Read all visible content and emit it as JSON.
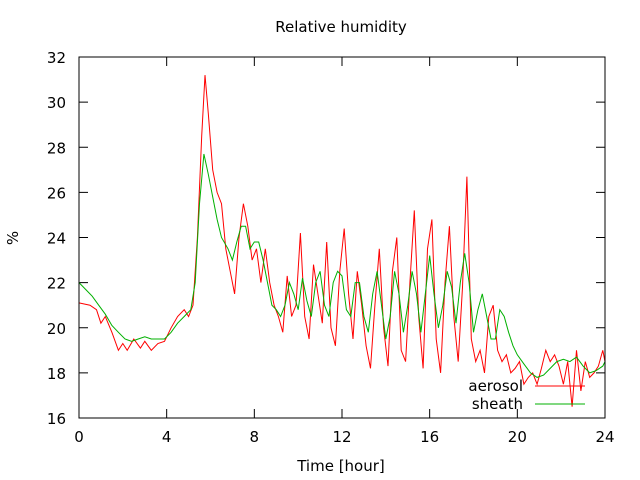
{
  "chart_data": {
    "type": "line",
    "title": "Relative humidity",
    "xlabel": "Time [hour]",
    "ylabel": "%",
    "xlim": [
      0,
      24
    ],
    "ylim": [
      16,
      32
    ],
    "xticks": [
      0,
      4,
      8,
      12,
      16,
      20,
      24
    ],
    "yticks": [
      16,
      18,
      20,
      22,
      24,
      26,
      28,
      30,
      32
    ],
    "grid": false,
    "legend": "bottom-right",
    "series": [
      {
        "name": "aerosol",
        "color": "#ff0000",
        "x": [
          0,
          0.5,
          0.8,
          1.0,
          1.2,
          1.5,
          1.8,
          2.0,
          2.2,
          2.5,
          2.8,
          3.0,
          3.3,
          3.6,
          3.9,
          4.2,
          4.5,
          4.8,
          5.0,
          5.2,
          5.4,
          5.6,
          5.75,
          5.9,
          6.1,
          6.3,
          6.5,
          6.7,
          6.9,
          7.1,
          7.3,
          7.5,
          7.7,
          7.9,
          8.1,
          8.3,
          8.5,
          8.7,
          8.9,
          9.1,
          9.3,
          9.5,
          9.7,
          9.9,
          10.1,
          10.3,
          10.5,
          10.7,
          10.9,
          11.1,
          11.3,
          11.5,
          11.7,
          11.9,
          12.1,
          12.3,
          12.5,
          12.7,
          12.9,
          13.1,
          13.3,
          13.5,
          13.7,
          13.9,
          14.1,
          14.3,
          14.5,
          14.7,
          14.9,
          15.1,
          15.3,
          15.5,
          15.7,
          15.9,
          16.1,
          16.3,
          16.5,
          16.7,
          16.9,
          17.1,
          17.3,
          17.5,
          17.7,
          17.9,
          18.1,
          18.3,
          18.5,
          18.7,
          18.9,
          19.1,
          19.3,
          19.5,
          19.7,
          19.9,
          20.1,
          20.3,
          20.5,
          20.7,
          20.9,
          21.1,
          21.3,
          21.5,
          21.7,
          21.9,
          22.1,
          22.3,
          22.5,
          22.7,
          22.9,
          23.1,
          23.3,
          23.5,
          23.7,
          23.9,
          24.0
        ],
        "y": [
          21.1,
          21.0,
          20.8,
          20.2,
          20.5,
          19.8,
          19.0,
          19.3,
          19.0,
          19.5,
          19.1,
          19.4,
          19.0,
          19.3,
          19.4,
          20.0,
          20.5,
          20.8,
          20.5,
          21.0,
          24.0,
          28.5,
          31.2,
          29.5,
          27.0,
          26.0,
          25.5,
          23.5,
          22.5,
          21.5,
          24.0,
          25.5,
          24.5,
          23.0,
          23.5,
          22.0,
          23.5,
          22.0,
          21.0,
          20.5,
          19.8,
          22.3,
          20.5,
          21.0,
          24.2,
          20.5,
          19.5,
          22.8,
          21.5,
          20.2,
          23.8,
          20.0,
          19.2,
          22.5,
          24.4,
          21.5,
          19.5,
          22.5,
          21.0,
          19.2,
          18.2,
          21.0,
          23.5,
          20.0,
          18.3,
          22.5,
          24.0,
          19.0,
          18.5,
          22.0,
          25.2,
          20.5,
          18.2,
          23.5,
          24.8,
          19.5,
          18.0,
          22.0,
          24.5,
          20.5,
          18.5,
          21.8,
          26.7,
          19.5,
          18.5,
          19.0,
          18.0,
          20.5,
          21.0,
          19.0,
          18.5,
          18.8,
          18.0,
          18.2,
          18.5,
          17.5,
          17.8,
          18.0,
          17.5,
          18.2,
          19.0,
          18.5,
          18.8,
          18.3,
          17.5,
          18.5,
          16.5,
          19.0,
          17.2,
          18.5,
          17.8,
          18.0,
          18.3,
          19.0,
          18.5
        ]
      },
      {
        "name": "sheath",
        "color": "#00b000",
        "x": [
          0,
          0.3,
          0.6,
          0.9,
          1.2,
          1.5,
          1.8,
          2.1,
          2.4,
          2.7,
          3.0,
          3.3,
          3.6,
          3.9,
          4.2,
          4.5,
          4.8,
          5.1,
          5.3,
          5.5,
          5.7,
          5.9,
          6.1,
          6.3,
          6.5,
          6.8,
          7.0,
          7.2,
          7.4,
          7.6,
          7.8,
          8.0,
          8.2,
          8.4,
          8.6,
          8.8,
          9.0,
          9.2,
          9.4,
          9.6,
          9.8,
          10.0,
          10.2,
          10.4,
          10.6,
          10.8,
          11.0,
          11.2,
          11.4,
          11.6,
          11.8,
          12.0,
          12.2,
          12.4,
          12.6,
          12.8,
          13.0,
          13.2,
          13.4,
          13.6,
          13.8,
          14.0,
          14.2,
          14.4,
          14.6,
          14.8,
          15.0,
          15.2,
          15.4,
          15.6,
          15.8,
          16.0,
          16.2,
          16.4,
          16.6,
          16.8,
          17.0,
          17.2,
          17.4,
          17.6,
          17.8,
          18.0,
          18.2,
          18.4,
          18.6,
          18.8,
          19.0,
          19.2,
          19.4,
          19.6,
          19.8,
          20.0,
          20.3,
          20.6,
          20.9,
          21.2,
          21.5,
          21.8,
          22.1,
          22.4,
          22.7,
          23.0,
          23.3,
          23.6,
          23.9,
          24.0
        ],
        "y": [
          22.0,
          21.7,
          21.4,
          21.0,
          20.6,
          20.1,
          19.8,
          19.5,
          19.4,
          19.5,
          19.6,
          19.5,
          19.5,
          19.5,
          19.8,
          20.2,
          20.5,
          20.8,
          22.0,
          25.5,
          27.7,
          26.8,
          25.8,
          24.8,
          24.0,
          23.5,
          23.0,
          23.8,
          24.5,
          24.5,
          23.5,
          23.8,
          23.8,
          23.0,
          22.0,
          21.0,
          20.8,
          20.5,
          21.0,
          22.0,
          21.5,
          20.8,
          22.2,
          21.2,
          20.5,
          22.0,
          22.5,
          21.0,
          20.5,
          22.0,
          22.5,
          22.3,
          20.8,
          20.5,
          22.0,
          22.0,
          20.5,
          19.8,
          21.5,
          22.5,
          21.0,
          19.5,
          20.5,
          22.5,
          21.5,
          19.8,
          21.0,
          22.5,
          21.5,
          19.8,
          21.5,
          23.2,
          21.5,
          20.0,
          21.0,
          22.5,
          21.8,
          20.2,
          22.0,
          23.3,
          22.0,
          19.8,
          20.8,
          21.5,
          20.5,
          19.5,
          19.5,
          20.8,
          20.5,
          19.8,
          19.2,
          18.8,
          18.4,
          18.0,
          17.8,
          17.9,
          18.2,
          18.5,
          18.6,
          18.5,
          18.7,
          18.3,
          18.0,
          18.1,
          18.3,
          18.5
        ]
      }
    ]
  }
}
